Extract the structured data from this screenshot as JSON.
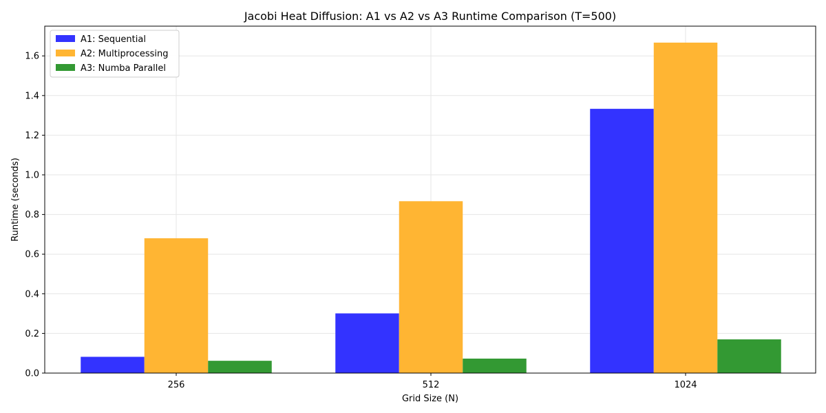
{
  "chart_data": {
    "type": "bar",
    "title": "Jacobi Heat Diffusion: A1 vs A2 vs A3 Runtime Comparison (T=500)",
    "xlabel": "Grid Size (N)",
    "ylabel": "Runtime (seconds)",
    "categories": [
      "256",
      "512",
      "1024"
    ],
    "series": [
      {
        "name": "A1: Sequential",
        "color": "#3333ff",
        "values": [
          0.082,
          0.301,
          1.333
        ]
      },
      {
        "name": "A2: Multiprocessing",
        "color": "#ffb533",
        "values": [
          0.68,
          0.867,
          1.667
        ]
      },
      {
        "name": "A3: Numba Parallel",
        "color": "#339933",
        "values": [
          0.062,
          0.073,
          0.17
        ]
      }
    ],
    "ylim": [
      0,
      1.75
    ],
    "yticks": [
      "0.0",
      "0.2",
      "0.4",
      "0.6",
      "0.8",
      "1.0",
      "1.2",
      "1.4",
      "1.6"
    ],
    "grid": true,
    "legend_position": "top-left"
  }
}
